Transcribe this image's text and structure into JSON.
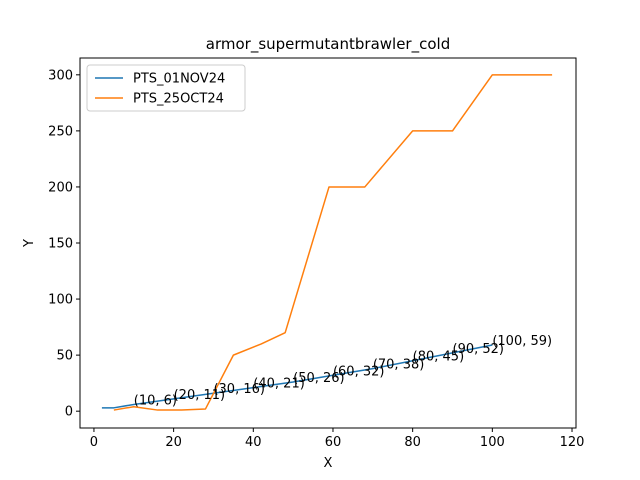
{
  "chart_data": {
    "type": "line",
    "title": "armor_supermutantbrawler_cold",
    "xlabel": "X",
    "ylabel": "Y",
    "xlim": [
      -3.5,
      121
    ],
    "ylim": [
      -15,
      315
    ],
    "xticks": [
      0,
      20,
      40,
      60,
      80,
      100,
      120
    ],
    "yticks": [
      0,
      50,
      100,
      150,
      200,
      250,
      300
    ],
    "grid": false,
    "legend_position": "top-left",
    "series": [
      {
        "name": "PTS_01NOV24",
        "color": "#1f77b4",
        "x": [
          2,
          5,
          10,
          20,
          30,
          40,
          50,
          60,
          70,
          80,
          90,
          100
        ],
        "y": [
          3,
          3,
          6,
          11,
          16,
          21,
          26,
          32,
          38,
          45,
          52,
          59
        ]
      },
      {
        "name": "PTS_25OCT24",
        "color": "#ff7f0e",
        "x": [
          5,
          10,
          16,
          22,
          28,
          35,
          42,
          48,
          59,
          68,
          80,
          90,
          100,
          115
        ],
        "y": [
          1,
          4,
          1,
          1,
          2,
          50,
          60,
          70,
          200,
          200,
          250,
          250,
          300,
          300
        ]
      }
    ],
    "annotations": [
      {
        "label": "(10, 6)",
        "x": 10,
        "y": 6
      },
      {
        "label": "(20, 11)",
        "x": 20,
        "y": 11
      },
      {
        "label": "(30, 16)",
        "x": 30,
        "y": 16
      },
      {
        "label": "(40, 21)",
        "x": 40,
        "y": 21
      },
      {
        "label": "(50, 26)",
        "x": 50,
        "y": 26
      },
      {
        "label": "(60, 32)",
        "x": 60,
        "y": 32
      },
      {
        "label": "(70, 38)",
        "x": 70,
        "y": 38
      },
      {
        "label": "(80, 45)",
        "x": 80,
        "y": 45
      },
      {
        "label": "(90, 52)",
        "x": 90,
        "y": 52
      },
      {
        "label": "(100, 59)",
        "x": 100,
        "y": 59
      }
    ]
  }
}
